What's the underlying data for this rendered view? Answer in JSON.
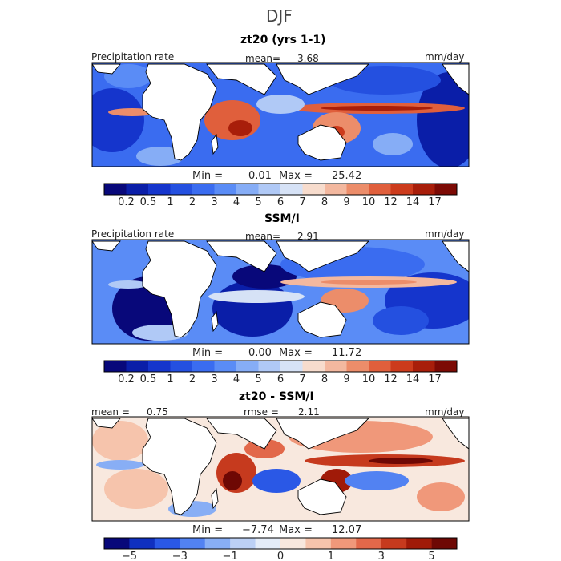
{
  "page": {
    "season": "DJF"
  },
  "chart_data": [
    {
      "type": "heatmap",
      "title": "zt20 (yrs 1-1)",
      "variable": "Precipitation rate",
      "units": "mm/day",
      "mean_label": "mean=",
      "mean_value": "3.68",
      "min_label": "Min =",
      "min_value": "0.01",
      "max_label": "Max =",
      "max_value": "25.42",
      "colorbar_levels": [
        0.2,
        0.5,
        1,
        2,
        3,
        4,
        5,
        6,
        7,
        8,
        9,
        10,
        12,
        14,
        17
      ],
      "colorbar_ticks": [
        "0.2",
        "0.5",
        "1",
        "2",
        "3",
        "4",
        "5",
        "6",
        "7",
        "8",
        "9",
        "10",
        "12",
        "14",
        "17"
      ],
      "colorbar_colors": [
        "#08087a",
        "#0a1ea8",
        "#1535cc",
        "#2450e0",
        "#3a6cf0",
        "#5a8cf6",
        "#86adf6",
        "#b0c9f6",
        "#d6e2f6",
        "#f7dccd",
        "#f3b89f",
        "#ec8d6a",
        "#e05f3c",
        "#cc3b1c",
        "#a81e0a",
        "#7c0a04"
      ],
      "domain": "tropical band, Atlantic–Indian–Pacific"
    },
    {
      "type": "heatmap",
      "title": "SSM/I",
      "variable": "Precipitation rate",
      "units": "mm/day",
      "mean_label": "mean=",
      "mean_value": "2.91",
      "min_label": "Min =",
      "min_value": "0.00",
      "max_label": "Max =",
      "max_value": "11.72",
      "colorbar_levels": [
        0.2,
        0.5,
        1,
        2,
        3,
        4,
        5,
        6,
        7,
        8,
        9,
        10,
        12,
        14,
        17
      ],
      "colorbar_ticks": [
        "0.2",
        "0.5",
        "1",
        "2",
        "3",
        "4",
        "5",
        "6",
        "7",
        "8",
        "9",
        "10",
        "12",
        "14",
        "17"
      ],
      "colorbar_colors": [
        "#08087a",
        "#0a1ea8",
        "#1535cc",
        "#2450e0",
        "#3a6cf0",
        "#5a8cf6",
        "#86adf6",
        "#b0c9f6",
        "#d6e2f6",
        "#f7dccd",
        "#f3b89f",
        "#ec8d6a",
        "#e05f3c",
        "#cc3b1c",
        "#a81e0a",
        "#7c0a04"
      ]
    },
    {
      "type": "heatmap",
      "title": "zt20 - SSM/I",
      "units": "mm/day",
      "mean_label": "mean =",
      "mean_value": "0.75",
      "rmse_label": "rmse =",
      "rmse_value": "2.11",
      "min_label": "Min =",
      "min_value": "−7.74",
      "max_label": "Max =",
      "max_value": "12.07",
      "colorbar_levels": [
        -5,
        -4,
        -3,
        -2,
        -1,
        -0.5,
        0,
        0.5,
        1,
        2,
        3,
        4,
        5
      ],
      "colorbar_ticks": [
        "−5",
        "−3",
        "−1",
        "0",
        "1",
        "3",
        "5"
      ],
      "colorbar_colors": [
        "#08087a",
        "#1030c0",
        "#2a58e6",
        "#5282f2",
        "#88aef5",
        "#bcd0f5",
        "#e4ecf8",
        "#f8e8de",
        "#f6c4ac",
        "#f0987a",
        "#e2684a",
        "#c63a1e",
        "#a01a08",
        "#6e0804"
      ]
    }
  ]
}
